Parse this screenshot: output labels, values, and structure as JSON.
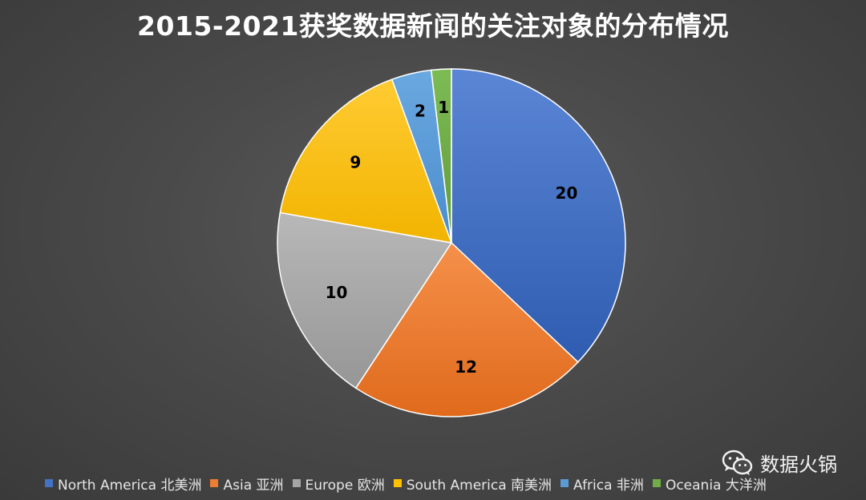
{
  "chart_data": {
    "type": "pie",
    "title": "2015-2021获奖数据新闻的关注对象的分布情况",
    "categories": [
      "North America 北美洲",
      "Asia 亚洲",
      "Europe 欧洲",
      "South America 南美洲",
      "Africa 非洲",
      "Oceania 大洋洲"
    ],
    "values": [
      20,
      12,
      10,
      9,
      2,
      1
    ],
    "colors": [
      "#4472c4",
      "#ed7d31",
      "#a5a5a5",
      "#ffc000",
      "#5b9bd5",
      "#70ad47"
    ],
    "legend_position": "bottom",
    "data_labels": true
  },
  "watermark": {
    "text": "数据火锅",
    "icon": "wechat-icon"
  }
}
